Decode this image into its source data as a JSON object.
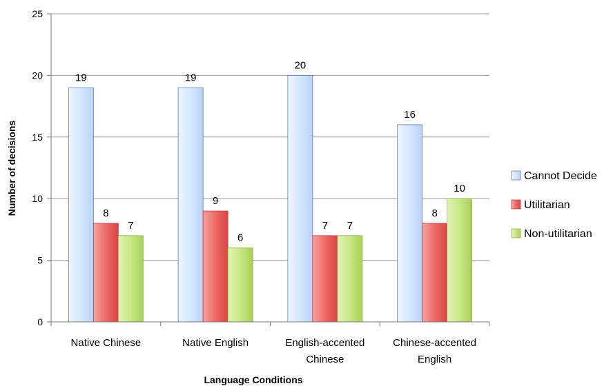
{
  "chart_data": {
    "type": "bar",
    "categories": [
      [
        "Native Chinese"
      ],
      [
        "Native English"
      ],
      [
        "English-accented",
        "Chinese"
      ],
      [
        "Chinese-accented",
        "English"
      ]
    ],
    "series": [
      {
        "name": "Cannot Decide",
        "values": [
          19,
          19,
          20,
          16
        ],
        "color": "#c6dcfa"
      },
      {
        "name": "Utilitarian",
        "values": [
          8,
          9,
          7,
          8
        ],
        "color": "#ee6a67"
      },
      {
        "name": "Non-utilitarian",
        "values": [
          7,
          6,
          7,
          10
        ],
        "color": "#c4e27a"
      }
    ],
    "data_labels": [
      [
        "19",
        "8",
        "7"
      ],
      [
        "19",
        "9",
        "6"
      ],
      [
        "20",
        "7",
        "7"
      ],
      [
        "16",
        "8",
        "10"
      ]
    ],
    "xlabel": "Language Conditions",
    "ylabel": "Number of decisions",
    "ylim": [
      0,
      25
    ],
    "yticks": [
      "0",
      "5",
      "10",
      "15",
      "20",
      "25"
    ],
    "grid": true,
    "legend_position": "right"
  }
}
